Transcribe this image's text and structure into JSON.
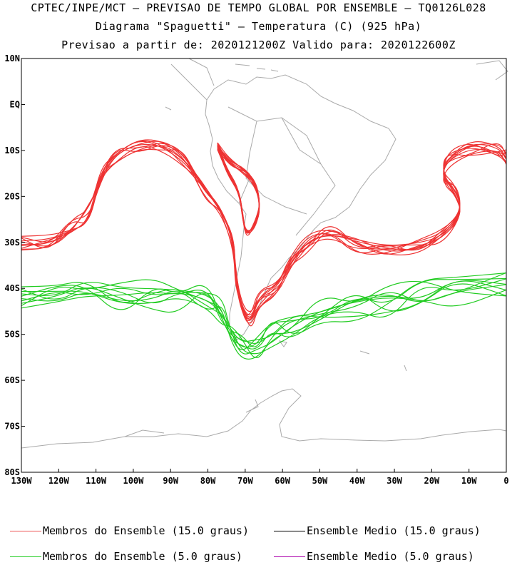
{
  "header": {
    "title_line1": "CPTEC/INPE/MCT — PREVISAO DE TEMPO GLOBAL POR ENSEMBLE — TQ0126L028",
    "title_line2": "Diagrama \"Spaguetti\" — Temperatura (C) (925 hPa)",
    "title_line3": "Previsao a partir de: 2020121200Z  Valido para: 2020122600Z"
  },
  "axes": {
    "lat_labels": [
      "10N",
      "EQ",
      "10S",
      "20S",
      "30S",
      "40S",
      "50S",
      "60S",
      "70S",
      "80S"
    ],
    "lat_values": [
      10,
      0,
      -10,
      -20,
      -30,
      -40,
      -50,
      -60,
      -70,
      -80
    ],
    "lon_labels": [
      "130W",
      "120W",
      "110W",
      "100W",
      "90W",
      "80W",
      "70W",
      "60W",
      "50W",
      "40W",
      "30W",
      "20W",
      "10W",
      "0"
    ],
    "lon_values": [
      -130,
      -120,
      -110,
      -100,
      -90,
      -80,
      -70,
      -60,
      -50,
      -40,
      -30,
      -20,
      -10,
      0
    ],
    "lon_range": [
      -130,
      0
    ],
    "lat_range": [
      -80,
      10
    ]
  },
  "series": {
    "red_isoline_deg": 15.0,
    "green_isoline_deg": 5.0,
    "red_color": "#ee3333",
    "green_color": "#22cc22",
    "coast_color": "#aaaaaa"
  },
  "legend": {
    "items": [
      {
        "label": "Membros do Ensemble (15.0 graus)",
        "color": "#ee5555"
      },
      {
        "label": "Ensemble Medio (15.0 graus)",
        "color": "#000000"
      },
      {
        "label": "Membros do Ensemble (5.0 graus)",
        "color": "#22cc22"
      },
      {
        "label": "Ensemble Medio (5.0 graus)",
        "color": "#aa00aa"
      }
    ]
  }
}
